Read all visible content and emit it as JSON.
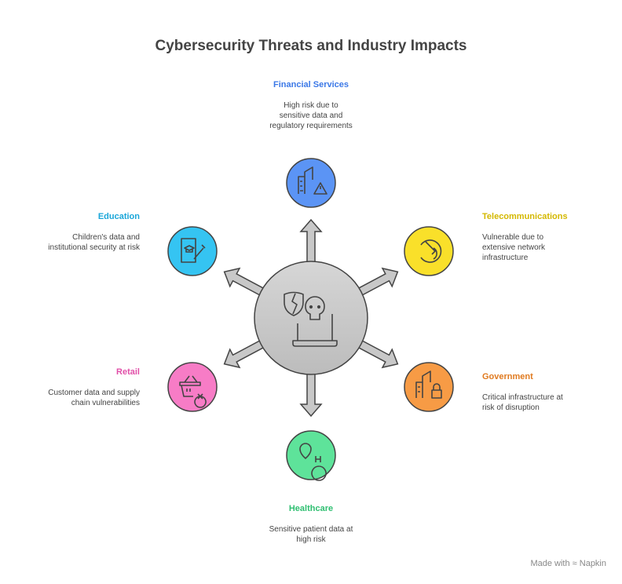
{
  "title": "Cybersecurity Threats and Industry Impacts",
  "center": {
    "icons": [
      "broken-shield-icon",
      "skull-laptop-icon"
    ],
    "color": "#cccccc"
  },
  "nodes": [
    {
      "label": "Financial Services",
      "desc": "High risk due to sensitive data and regulatory requirements",
      "color": "#3b78e7",
      "fill": "#5b94f5",
      "icon": "buildings-warning-icon"
    },
    {
      "label": "Telecommunications",
      "desc": "Vulnerable due to extensive network infrastructure",
      "color": "#d4b800",
      "fill": "#f9e02a",
      "icon": "network-icon"
    },
    {
      "label": "Government",
      "desc": "Critical infrastructure at risk of disruption",
      "color": "#e07a1f",
      "fill": "#f79b45",
      "icon": "buildings-lock-icon"
    },
    {
      "label": "Healthcare",
      "desc": "Sensitive patient data at high risk",
      "color": "#2fbf71",
      "fill": "#5ee39a",
      "icon": "hospital-pin-icon"
    },
    {
      "label": "Retail",
      "desc": "Customer data and supply chain vulnerabilities",
      "color": "#e14fa8",
      "fill": "#f77cc6",
      "icon": "basket-x-icon"
    },
    {
      "label": "Education",
      "desc": "Children's data and institutional security at risk",
      "color": "#1aa6d9",
      "fill": "#35c4f2",
      "icon": "education-brush-icon"
    }
  ],
  "branding": "Made with ≈ Napkin"
}
